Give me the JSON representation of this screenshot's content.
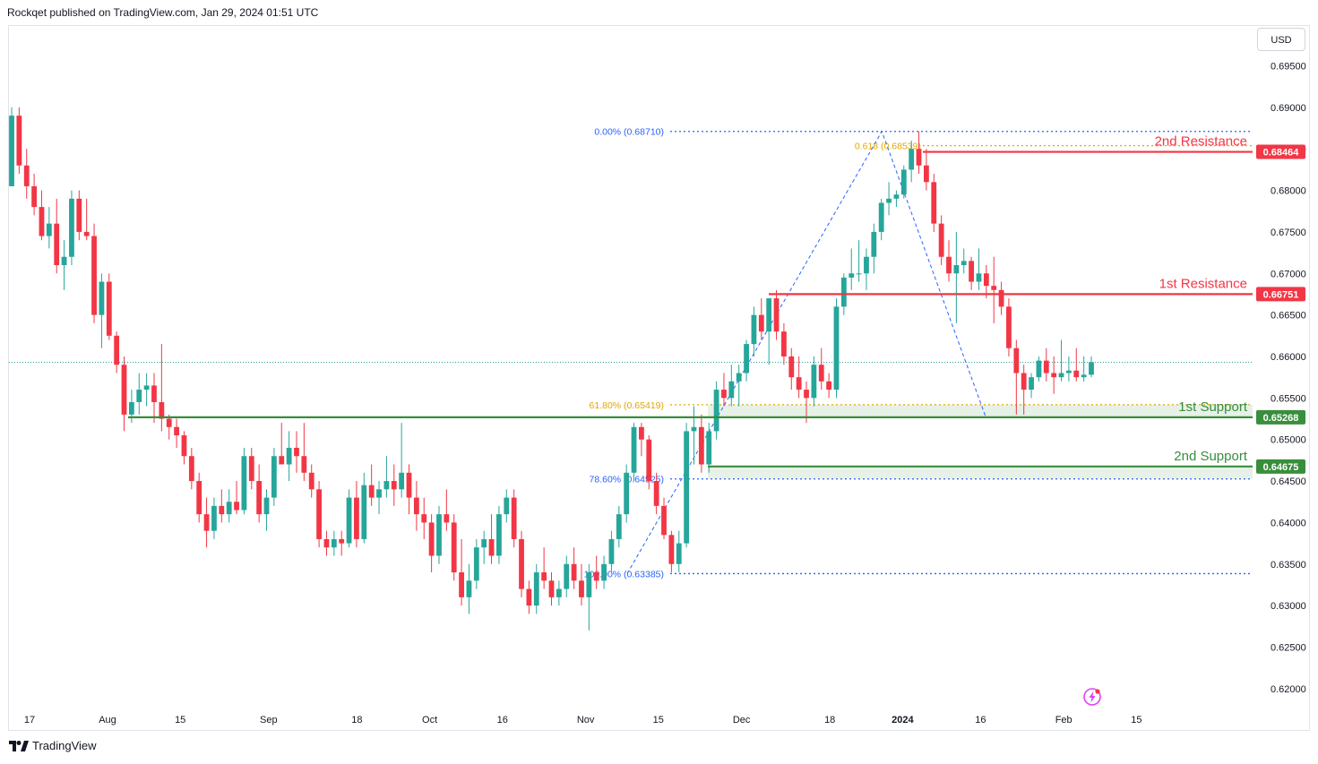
{
  "header": {
    "published": "Rockqet published on TradingView.com, Jan 29, 2024 01:51 UTC"
  },
  "currency_label": "USD",
  "footer": {
    "brand": "TradingView",
    "logo_icon": "tradingview-logo-icon"
  },
  "colors": {
    "up": "#26a69a",
    "down": "#f23645",
    "resistance": "#f23645",
    "support": "#388e3c",
    "fib_blue": "#2962ff",
    "fib_gold": "#e0a800"
  },
  "chart_data": {
    "type": "candlestick",
    "title": "",
    "ylim": [
      0.6175,
      0.6998
    ],
    "y_ticks": [
      "0.69500",
      "0.69000",
      "0.68500",
      "0.68000",
      "0.67500",
      "0.67000",
      "0.66500",
      "0.66000",
      "0.65500",
      "0.65000",
      "0.64500",
      "0.64000",
      "0.63500",
      "0.63000",
      "0.62500",
      "0.62000"
    ],
    "x_ticks": [
      {
        "label": "17",
        "date": "2023-07-17"
      },
      {
        "label": "Aug",
        "date": "2023-08-01"
      },
      {
        "label": "15",
        "date": "2023-08-15"
      },
      {
        "label": "Sep",
        "date": "2023-09-01"
      },
      {
        "label": "18",
        "date": "2023-09-18"
      },
      {
        "label": "Oct",
        "date": "2023-10-02"
      },
      {
        "label": "16",
        "date": "2023-10-16"
      },
      {
        "label": "Nov",
        "date": "2023-11-01"
      },
      {
        "label": "15",
        "date": "2023-11-15"
      },
      {
        "label": "Dec",
        "date": "2023-12-01"
      },
      {
        "label": "18",
        "date": "2023-12-18"
      },
      {
        "label": "2024",
        "date": "2024-01-01"
      },
      {
        "label": "16",
        "date": "2024-01-16"
      },
      {
        "label": "Feb",
        "date": "2024-02-01"
      },
      {
        "label": "15",
        "date": "2024-02-15"
      }
    ],
    "last_price": 0.6593,
    "candles_ohlc": [
      [
        0.6805,
        0.69,
        0.6805,
        0.689
      ],
      [
        0.689,
        0.69,
        0.682,
        0.683
      ],
      [
        0.683,
        0.685,
        0.679,
        0.6805
      ],
      [
        0.6805,
        0.682,
        0.677,
        0.678
      ],
      [
        0.678,
        0.68,
        0.674,
        0.6745
      ],
      [
        0.6745,
        0.678,
        0.673,
        0.676
      ],
      [
        0.676,
        0.679,
        0.67,
        0.671
      ],
      [
        0.671,
        0.674,
        0.668,
        0.672
      ],
      [
        0.672,
        0.68,
        0.671,
        0.679
      ],
      [
        0.679,
        0.68,
        0.674,
        0.675
      ],
      [
        0.675,
        0.679,
        0.674,
        0.6745
      ],
      [
        0.6745,
        0.676,
        0.664,
        0.665
      ],
      [
        0.665,
        0.67,
        0.661,
        0.669
      ],
      [
        0.669,
        0.67,
        0.662,
        0.6625
      ],
      [
        0.6625,
        0.663,
        0.658,
        0.659
      ],
      [
        0.659,
        0.66,
        0.651,
        0.653
      ],
      [
        0.653,
        0.656,
        0.652,
        0.6545
      ],
      [
        0.6545,
        0.658,
        0.653,
        0.656
      ],
      [
        0.656,
        0.658,
        0.654,
        0.6565
      ],
      [
        0.6565,
        0.658,
        0.652,
        0.6545
      ],
      [
        0.6545,
        0.6615,
        0.651,
        0.6525
      ],
      [
        0.6525,
        0.653,
        0.65,
        0.6515
      ],
      [
        0.6515,
        0.6525,
        0.649,
        0.6505
      ],
      [
        0.6505,
        0.651,
        0.647,
        0.648
      ],
      [
        0.648,
        0.649,
        0.644,
        0.645
      ],
      [
        0.645,
        0.646,
        0.64,
        0.641
      ],
      [
        0.641,
        0.643,
        0.637,
        0.639
      ],
      [
        0.639,
        0.643,
        0.638,
        0.642
      ],
      [
        0.642,
        0.644,
        0.64,
        0.641
      ],
      [
        0.641,
        0.644,
        0.64,
        0.6425
      ],
      [
        0.6425,
        0.645,
        0.641,
        0.6415
      ],
      [
        0.6415,
        0.649,
        0.641,
        0.648
      ],
      [
        0.648,
        0.649,
        0.644,
        0.645
      ],
      [
        0.645,
        0.647,
        0.64,
        0.641
      ],
      [
        0.641,
        0.644,
        0.639,
        0.643
      ],
      [
        0.643,
        0.649,
        0.642,
        0.648
      ],
      [
        0.648,
        0.652,
        0.647,
        0.647
      ],
      [
        0.647,
        0.651,
        0.645,
        0.649
      ],
      [
        0.649,
        0.651,
        0.646,
        0.648
      ],
      [
        0.648,
        0.652,
        0.645,
        0.646
      ],
      [
        0.646,
        0.647,
        0.643,
        0.644
      ],
      [
        0.644,
        0.645,
        0.637,
        0.638
      ],
      [
        0.638,
        0.639,
        0.636,
        0.637
      ],
      [
        0.637,
        0.639,
        0.636,
        0.638
      ],
      [
        0.638,
        0.639,
        0.636,
        0.6375
      ],
      [
        0.6375,
        0.644,
        0.637,
        0.643
      ],
      [
        0.643,
        0.645,
        0.637,
        0.638
      ],
      [
        0.638,
        0.646,
        0.6375,
        0.6445
      ],
      [
        0.6445,
        0.647,
        0.642,
        0.643
      ],
      [
        0.643,
        0.645,
        0.641,
        0.644
      ],
      [
        0.644,
        0.648,
        0.643,
        0.645
      ],
      [
        0.645,
        0.647,
        0.642,
        0.644
      ],
      [
        0.644,
        0.652,
        0.643,
        0.646
      ],
      [
        0.646,
        0.647,
        0.641,
        0.643
      ],
      [
        0.643,
        0.645,
        0.639,
        0.641
      ],
      [
        0.641,
        0.643,
        0.638,
        0.64
      ],
      [
        0.64,
        0.641,
        0.634,
        0.636
      ],
      [
        0.636,
        0.642,
        0.635,
        0.641
      ],
      [
        0.641,
        0.644,
        0.639,
        0.64
      ],
      [
        0.64,
        0.641,
        0.633,
        0.634
      ],
      [
        0.634,
        0.638,
        0.63,
        0.631
      ],
      [
        0.631,
        0.635,
        0.629,
        0.633
      ],
      [
        0.633,
        0.638,
        0.632,
        0.637
      ],
      [
        0.637,
        0.639,
        0.635,
        0.638
      ],
      [
        0.638,
        0.641,
        0.635,
        0.636
      ],
      [
        0.636,
        0.642,
        0.635,
        0.641
      ],
      [
        0.641,
        0.644,
        0.64,
        0.643
      ],
      [
        0.643,
        0.644,
        0.637,
        0.638
      ],
      [
        0.638,
        0.639,
        0.631,
        0.632
      ],
      [
        0.632,
        0.633,
        0.629,
        0.63
      ],
      [
        0.63,
        0.635,
        0.629,
        0.634
      ],
      [
        0.634,
        0.637,
        0.632,
        0.633
      ],
      [
        0.633,
        0.634,
        0.63,
        0.631
      ],
      [
        0.631,
        0.633,
        0.63,
        0.632
      ],
      [
        0.632,
        0.636,
        0.631,
        0.635
      ],
      [
        0.635,
        0.637,
        0.632,
        0.633
      ],
      [
        0.633,
        0.635,
        0.63,
        0.631
      ],
      [
        0.631,
        0.635,
        0.627,
        0.634
      ],
      [
        0.634,
        0.636,
        0.632,
        0.633
      ],
      [
        0.633,
        0.636,
        0.632,
        0.635
      ],
      [
        0.635,
        0.639,
        0.634,
        0.638
      ],
      [
        0.638,
        0.642,
        0.637,
        0.641
      ],
      [
        0.641,
        0.647,
        0.64,
        0.646
      ],
      [
        0.646,
        0.652,
        0.645,
        0.6515
      ],
      [
        0.6515,
        0.652,
        0.648,
        0.65
      ],
      [
        0.65,
        0.6505,
        0.644,
        0.645
      ],
      [
        0.645,
        0.646,
        0.641,
        0.642
      ],
      [
        0.642,
        0.643,
        0.638,
        0.6385
      ],
      [
        0.6385,
        0.639,
        0.634,
        0.635
      ],
      [
        0.635,
        0.639,
        0.634,
        0.6375
      ],
      [
        0.6375,
        0.652,
        0.637,
        0.651
      ],
      [
        0.651,
        0.654,
        0.647,
        0.6515
      ],
      [
        0.6515,
        0.653,
        0.646,
        0.647
      ],
      [
        0.647,
        0.652,
        0.646,
        0.651
      ],
      [
        0.651,
        0.657,
        0.65,
        0.656
      ],
      [
        0.656,
        0.658,
        0.654,
        0.655
      ],
      [
        0.655,
        0.659,
        0.654,
        0.657
      ],
      [
        0.657,
        0.659,
        0.654,
        0.658
      ],
      [
        0.658,
        0.662,
        0.657,
        0.6615
      ],
      [
        0.6615,
        0.666,
        0.66,
        0.665
      ],
      [
        0.665,
        0.667,
        0.662,
        0.663
      ],
      [
        0.663,
        0.667,
        0.659,
        0.667
      ],
      [
        0.667,
        0.668,
        0.662,
        0.663
      ],
      [
        0.663,
        0.664,
        0.659,
        0.66
      ],
      [
        0.66,
        0.661,
        0.656,
        0.6575
      ],
      [
        0.6575,
        0.66,
        0.655,
        0.656
      ],
      [
        0.656,
        0.657,
        0.652,
        0.655
      ],
      [
        0.655,
        0.66,
        0.654,
        0.659
      ],
      [
        0.659,
        0.661,
        0.656,
        0.657
      ],
      [
        0.657,
        0.658,
        0.655,
        0.656
      ],
      [
        0.656,
        0.667,
        0.655,
        0.666
      ],
      [
        0.666,
        0.67,
        0.665,
        0.6695
      ],
      [
        0.6695,
        0.673,
        0.668,
        0.67
      ],
      [
        0.67,
        0.674,
        0.669,
        0.67
      ],
      [
        0.67,
        0.673,
        0.668,
        0.672
      ],
      [
        0.672,
        0.676,
        0.67,
        0.675
      ],
      [
        0.675,
        0.679,
        0.674,
        0.6785
      ],
      [
        0.6785,
        0.681,
        0.677,
        0.679
      ],
      [
        0.679,
        0.68,
        0.678,
        0.6795
      ],
      [
        0.6795,
        0.683,
        0.679,
        0.6825
      ],
      [
        0.6825,
        0.686,
        0.681,
        0.685
      ],
      [
        0.685,
        0.6871,
        0.682,
        0.683
      ],
      [
        0.683,
        0.685,
        0.68,
        0.681
      ],
      [
        0.681,
        0.682,
        0.675,
        0.676
      ],
      [
        0.676,
        0.677,
        0.671,
        0.672
      ],
      [
        0.672,
        0.674,
        0.669,
        0.67
      ],
      [
        0.67,
        0.675,
        0.664,
        0.671
      ],
      [
        0.671,
        0.673,
        0.67,
        0.6715
      ],
      [
        0.6715,
        0.672,
        0.668,
        0.669
      ],
      [
        0.669,
        0.673,
        0.668,
        0.67
      ],
      [
        0.67,
        0.671,
        0.667,
        0.6685
      ],
      [
        0.6685,
        0.672,
        0.664,
        0.668
      ],
      [
        0.668,
        0.669,
        0.665,
        0.666
      ],
      [
        0.666,
        0.667,
        0.66,
        0.661
      ],
      [
        0.661,
        0.662,
        0.653,
        0.658
      ],
      [
        0.658,
        0.659,
        0.653,
        0.656
      ],
      [
        0.656,
        0.658,
        0.655,
        0.6575
      ],
      [
        0.6575,
        0.66,
        0.657,
        0.6595
      ],
      [
        0.6595,
        0.661,
        0.657,
        0.658
      ],
      [
        0.658,
        0.66,
        0.6555,
        0.6575
      ],
      [
        0.6575,
        0.662,
        0.657,
        0.658
      ],
      [
        0.658,
        0.66,
        0.657,
        0.6583
      ],
      [
        0.6583,
        0.661,
        0.657,
        0.6575
      ],
      [
        0.6575,
        0.66,
        0.657,
        0.6578
      ],
      [
        0.6578,
        0.66,
        0.6575,
        0.6593
      ]
    ],
    "levels": [
      {
        "label": "2nd Resistance",
        "price_tag": "0.68464",
        "value": 0.68464,
        "kind": "resistance"
      },
      {
        "label": "1st Resistance",
        "price_tag": "0.66751",
        "value": 0.66751,
        "kind": "resistance"
      },
      {
        "label": "1st Support",
        "price_tag": "0.65268",
        "value": 0.65268,
        "kind": "support"
      },
      {
        "label": "2nd Support",
        "price_tag": "0.64675",
        "value": 0.64675,
        "kind": "support"
      }
    ],
    "fib_lines": [
      {
        "label": "0.00% (0.68710)",
        "value": 0.6871,
        "color": "blue"
      },
      {
        "label": "61.80% (0.65419)",
        "value": 0.65419,
        "color": "gold"
      },
      {
        "label": "78.60% (0.64525)",
        "value": 0.64525,
        "color": "blue"
      },
      {
        "label": "100.00% (0.63385)",
        "value": 0.63385,
        "color": "blue"
      },
      {
        "label": "0.618 (0.68539)",
        "value": 0.68539,
        "color": "gold"
      }
    ],
    "swing_path": [
      {
        "date": "2023-11-09",
        "value": 0.63385
      },
      {
        "date": "2023-12-28",
        "value": 0.6871
      },
      {
        "date": "2024-01-17",
        "value": 0.6527
      }
    ]
  }
}
